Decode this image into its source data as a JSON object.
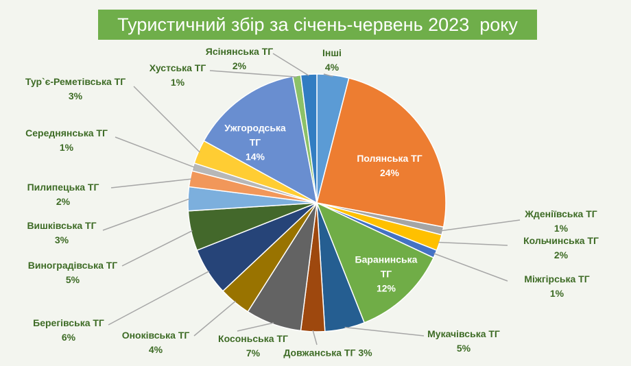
{
  "chart_data": {
    "type": "pie",
    "title": "Туристичний збір за січень-червень 2023  року",
    "categories": [
      "Інші",
      "Полянська ТГ",
      "Жденіївська ТГ",
      "Кольчинська ТГ",
      "Міжгірська ТГ",
      "Баранинська ТГ",
      "Мукачівська ТГ",
      "Довжанська ТГ",
      "Косоньська ТГ",
      "Оноківська ТГ",
      "Берегівська ТГ",
      "Виноградівська ТГ",
      "Вишківська ТГ",
      "Пилипецька ТГ",
      "Середнянська ТГ",
      "Тур`є-Реметівська ТГ",
      "Ужгородська ТГ",
      "Хустська ТГ",
      "Ясінянська ТГ"
    ],
    "values": [
      4,
      24,
      1,
      2,
      1,
      12,
      5,
      3,
      7,
      4,
      6,
      5,
      3,
      2,
      1,
      3,
      14,
      1,
      2
    ],
    "value_labels": [
      "4%",
      "24%",
      "1%",
      "2%",
      "1%",
      "12%",
      "5%",
      "3%",
      "7%",
      "4%",
      "6%",
      "5%",
      "3%",
      "2%",
      "1%",
      "3%",
      "14%",
      "1%",
      "2%"
    ],
    "colors": [
      "#5b9bd5",
      "#ed7d31",
      "#a5a5a5",
      "#ffc000",
      "#4472c4",
      "#70ad47",
      "#255e91",
      "#9e480e",
      "#636363",
      "#997300",
      "#264478",
      "#43682b",
      "#7cafdd",
      "#f1975a",
      "#b7b7b7",
      "#ffcd33",
      "#698ed0",
      "#8cc168",
      "#327dc2"
    ]
  }
}
